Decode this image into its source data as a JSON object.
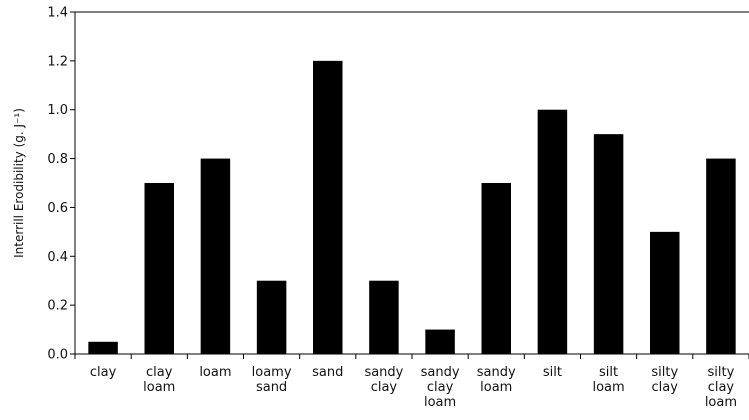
{
  "chart_data": {
    "type": "bar",
    "categories": [
      [
        "clay"
      ],
      [
        "clay",
        "loam"
      ],
      [
        "loam"
      ],
      [
        "loamy",
        "sand"
      ],
      [
        "sand"
      ],
      [
        "sandy",
        "clay"
      ],
      [
        "sandy",
        "clay",
        "loam"
      ],
      [
        "sandy",
        "loam"
      ],
      [
        "silt"
      ],
      [
        "silt",
        "loam"
      ],
      [
        "silty",
        "clay"
      ],
      [
        "silty",
        "clay",
        "loam"
      ]
    ],
    "values": [
      0.05,
      0.7,
      0.8,
      0.3,
      1.2,
      0.3,
      0.1,
      0.7,
      1.0,
      0.9,
      0.5,
      0.8
    ],
    "ylabel": "Interrill Erodibility (g. J⁻¹)",
    "ylim": [
      0,
      1.4
    ],
    "yticks": [
      "0.0",
      "0.2",
      "0.4",
      "0.6",
      "0.8",
      "1.0",
      "1.2",
      "1.4"
    ],
    "bar_color": "#000000",
    "grid": false
  }
}
